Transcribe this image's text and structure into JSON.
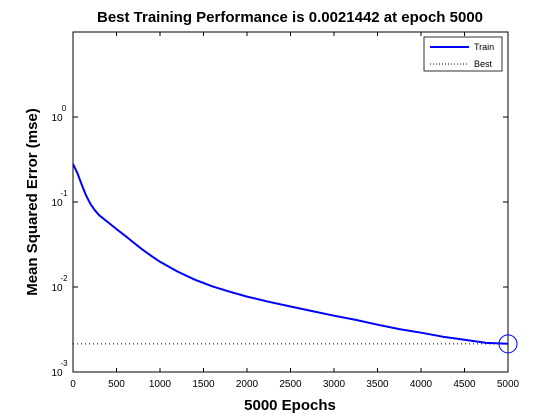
{
  "chart_data": {
    "type": "line",
    "title": "Best Training Performance is 0.0021442 at epoch 5000",
    "xlabel": "5000 Epochs",
    "ylabel": "Mean Squared Error  (mse)",
    "xlim": [
      0,
      5000
    ],
    "ylim": [
      0.001,
      10
    ],
    "yscale": "log",
    "xticks": [
      "0",
      "500",
      "1000",
      "1500",
      "2000",
      "2500",
      "3000",
      "3500",
      "4000",
      "4500",
      "5000"
    ],
    "yticks": [
      {
        "base": "10",
        "exp": "0"
      },
      {
        "base": "10",
        "exp": "-1"
      },
      {
        "base": "10",
        "exp": "-2"
      },
      {
        "base": "10",
        "exp": "-3"
      }
    ],
    "grid": false,
    "legend_position": "top-right",
    "series": [
      {
        "name": "Train",
        "color": "#0000ff",
        "style": "solid",
        "x": [
          0,
          50,
          100,
          150,
          200,
          250,
          300,
          400,
          500,
          600,
          700,
          800,
          900,
          1000,
          1200,
          1400,
          1600,
          1800,
          2000,
          2250,
          2500,
          2750,
          3000,
          3250,
          3500,
          3750,
          4000,
          4250,
          4500,
          4750,
          5000
        ],
        "y": [
          0.28,
          0.22,
          0.16,
          0.12,
          0.095,
          0.08,
          0.07,
          0.058,
          0.048,
          0.04,
          0.033,
          0.0275,
          0.0232,
          0.0198,
          0.0152,
          0.0122,
          0.0102,
          0.0088,
          0.0077,
          0.0067,
          0.0059,
          0.0052,
          0.0046,
          0.0041,
          0.0036,
          0.0032,
          0.0029,
          0.0026,
          0.0024,
          0.0022,
          0.0021442
        ]
      },
      {
        "name": "Best",
        "color": "#000000",
        "style": "dotted",
        "value": 0.0021442,
        "epoch": 5000
      }
    ],
    "best_marker": {
      "x": 5000,
      "y": 0.0021442,
      "color": "#0000ff"
    }
  }
}
